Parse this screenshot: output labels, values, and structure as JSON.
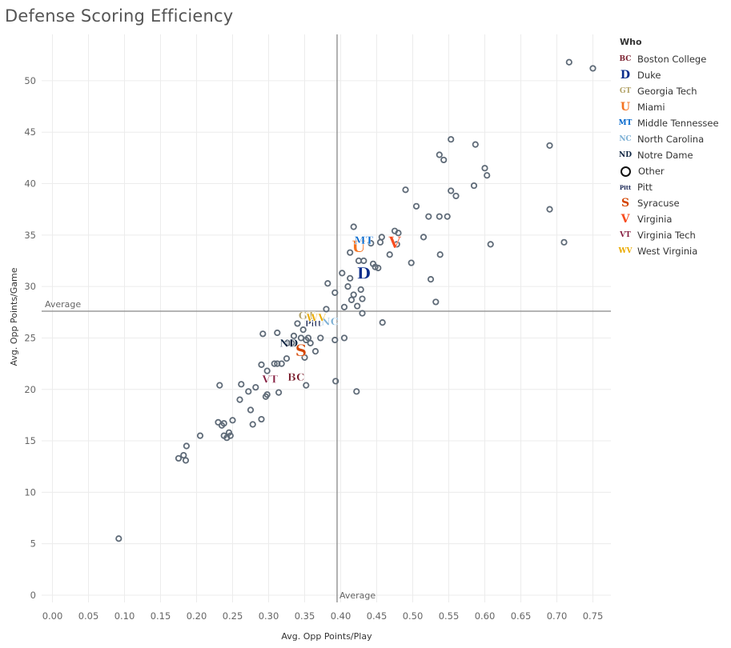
{
  "chart_data": {
    "type": "scatter",
    "title": "Defense Scoring Efficiency",
    "xlabel": "Avg. Opp Points/Play",
    "ylabel": "Avg. Opp Points/Game",
    "xlim": [
      -0.015,
      0.775
    ],
    "ylim": [
      -0.7,
      54.5
    ],
    "x_ticks": [
      "0.00",
      "0.05",
      "0.10",
      "0.15",
      "0.20",
      "0.25",
      "0.30",
      "0.35",
      "0.40",
      "0.45",
      "0.50",
      "0.55",
      "0.60",
      "0.65",
      "0.70",
      "0.75"
    ],
    "x_tick_values": [
      0,
      0.05,
      0.1,
      0.15,
      0.2,
      0.25,
      0.3,
      0.35,
      0.4,
      0.45,
      0.5,
      0.55,
      0.6,
      0.65,
      0.7,
      0.75
    ],
    "y_ticks": [
      "0",
      "5",
      "10",
      "15",
      "20",
      "25",
      "30",
      "35",
      "40",
      "45",
      "50"
    ],
    "y_tick_values": [
      0,
      5,
      10,
      15,
      20,
      25,
      30,
      35,
      40,
      45,
      50
    ],
    "grid": true,
    "legend_placement": "right",
    "legend_title": "Who",
    "reference_lines": {
      "x_average": {
        "value": 0.395,
        "label": "Average"
      },
      "y_average": {
        "value": 27.6,
        "label": "Average"
      }
    },
    "teams": [
      {
        "name": "Boston College",
        "mark": "BC",
        "color": "#7a1f2e",
        "x": 0.338,
        "y": 21.2
      },
      {
        "name": "Duke",
        "mark": "D",
        "color": "#0a2d8c",
        "x": 0.432,
        "y": 31.3
      },
      {
        "name": "Georgia Tech",
        "mark": "GT",
        "color": "#b3a369",
        "x": 0.353,
        "y": 27.2
      },
      {
        "name": "Miami",
        "mark": "U",
        "color": "#f47321",
        "x": 0.425,
        "y": 33.9
      },
      {
        "name": "Middle Tennessee",
        "mark": "MT",
        "color": "#0066cc",
        "x": 0.432,
        "y": 34.5
      },
      {
        "name": "North Carolina",
        "mark": "NC",
        "color": "#7bafd4",
        "x": 0.385,
        "y": 26.6
      },
      {
        "name": "Notre Dame",
        "mark": "ND",
        "color": "#0c2340",
        "x": 0.328,
        "y": 24.5
      },
      {
        "name": "Pitt",
        "mark": "Pitt",
        "color": "#1c2957",
        "x": 0.362,
        "y": 26.4
      },
      {
        "name": "Syracuse",
        "mark": "S",
        "color": "#d44500",
        "x": 0.345,
        "y": 23.8
      },
      {
        "name": "Virginia",
        "mark": "V",
        "color": "#f84c1e",
        "x": 0.475,
        "y": 34.3
      },
      {
        "name": "Virginia Tech",
        "mark": "VT",
        "color": "#861f41",
        "x": 0.302,
        "y": 21.0
      },
      {
        "name": "West Virginia",
        "mark": "WV",
        "color": "#eaaa00",
        "x": 0.366,
        "y": 27.0
      }
    ],
    "other_points": [
      [
        0.092,
        5.5
      ],
      [
        0.175,
        13.3
      ],
      [
        0.182,
        13.6
      ],
      [
        0.185,
        13.1
      ],
      [
        0.186,
        14.5
      ],
      [
        0.205,
        15.5
      ],
      [
        0.23,
        16.8
      ],
      [
        0.235,
        16.5
      ],
      [
        0.238,
        16.7
      ],
      [
        0.238,
        15.5
      ],
      [
        0.242,
        15.3
      ],
      [
        0.245,
        15.8
      ],
      [
        0.247,
        15.5
      ],
      [
        0.25,
        17.0
      ],
      [
        0.232,
        20.4
      ],
      [
        0.262,
        20.5
      ],
      [
        0.26,
        19.0
      ],
      [
        0.272,
        19.8
      ],
      [
        0.275,
        18.0
      ],
      [
        0.278,
        16.6
      ],
      [
        0.282,
        20.2
      ],
      [
        0.29,
        17.1
      ],
      [
        0.29,
        22.4
      ],
      [
        0.292,
        25.4
      ],
      [
        0.298,
        19.5
      ],
      [
        0.296,
        19.3
      ],
      [
        0.298,
        21.8
      ],
      [
        0.308,
        22.5
      ],
      [
        0.312,
        22.5
      ],
      [
        0.314,
        19.7
      ],
      [
        0.318,
        22.5
      ],
      [
        0.312,
        25.5
      ],
      [
        0.325,
        23.0
      ],
      [
        0.326,
        24.5
      ],
      [
        0.332,
        24.5
      ],
      [
        0.335,
        25.2
      ],
      [
        0.34,
        26.4
      ],
      [
        0.345,
        25.0
      ],
      [
        0.348,
        25.8
      ],
      [
        0.35,
        23.1
      ],
      [
        0.352,
        24.8
      ],
      [
        0.355,
        25.0
      ],
      [
        0.358,
        24.5
      ],
      [
        0.365,
        23.7
      ],
      [
        0.372,
        25.0
      ],
      [
        0.352,
        20.4
      ],
      [
        0.392,
        24.8
      ],
      [
        0.405,
        25.0
      ],
      [
        0.393,
        20.8
      ],
      [
        0.38,
        27.8
      ],
      [
        0.382,
        30.3
      ],
      [
        0.392,
        29.4
      ],
      [
        0.402,
        31.3
      ],
      [
        0.405,
        28.0
      ],
      [
        0.41,
        30.0
      ],
      [
        0.413,
        30.8
      ],
      [
        0.415,
        28.7
      ],
      [
        0.418,
        29.2
      ],
      [
        0.413,
        33.3
      ],
      [
        0.418,
        35.8
      ],
      [
        0.423,
        28.1
      ],
      [
        0.425,
        32.5
      ],
      [
        0.428,
        29.7
      ],
      [
        0.43,
        28.8
      ],
      [
        0.43,
        27.4
      ],
      [
        0.432,
        32.5
      ],
      [
        0.442,
        34.2
      ],
      [
        0.445,
        32.2
      ],
      [
        0.448,
        31.9
      ],
      [
        0.452,
        31.8
      ],
      [
        0.455,
        34.3
      ],
      [
        0.457,
        34.8
      ],
      [
        0.458,
        26.5
      ],
      [
        0.468,
        33.1
      ],
      [
        0.475,
        35.4
      ],
      [
        0.48,
        35.2
      ],
      [
        0.478,
        34.1
      ],
      [
        0.49,
        39.4
      ],
      [
        0.498,
        32.3
      ],
      [
        0.505,
        37.8
      ],
      [
        0.515,
        34.8
      ],
      [
        0.522,
        36.8
      ],
      [
        0.525,
        30.7
      ],
      [
        0.532,
        28.5
      ],
      [
        0.537,
        36.8
      ],
      [
        0.538,
        33.1
      ],
      [
        0.537,
        42.8
      ],
      [
        0.543,
        42.3
      ],
      [
        0.548,
        36.8
      ],
      [
        0.553,
        44.3
      ],
      [
        0.553,
        39.3
      ],
      [
        0.56,
        38.8
      ],
      [
        0.585,
        39.8
      ],
      [
        0.587,
        43.8
      ],
      [
        0.6,
        41.5
      ],
      [
        0.603,
        40.8
      ],
      [
        0.608,
        34.1
      ],
      [
        0.422,
        19.8
      ],
      [
        0.69,
        43.7
      ],
      [
        0.69,
        37.5
      ],
      [
        0.71,
        34.3
      ],
      [
        0.717,
        51.8
      ],
      [
        0.75,
        51.2
      ]
    ]
  }
}
